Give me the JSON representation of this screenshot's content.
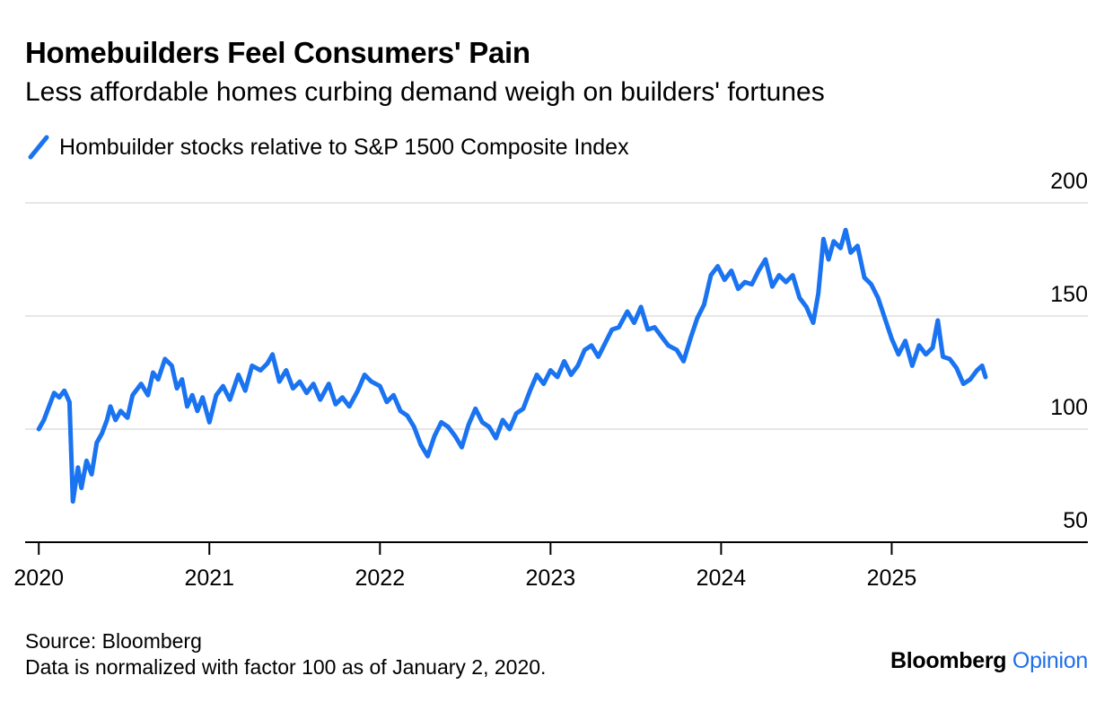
{
  "header": {
    "title": "Homebuilders Feel Consumers' Pain",
    "subtitle": "Less affordable homes curbing demand weigh on builders' fortunes"
  },
  "legend": {
    "label": "Hombuilder stocks relative to S&P 1500 Composite Index",
    "color": "#1a73f0"
  },
  "footer": {
    "source": "Source: Bloomberg",
    "note": "Data is normalized with factor 100 as of January 2, 2020.",
    "brand_main": "Bloomberg",
    "brand_sub": "Opinion"
  },
  "chart_data": {
    "type": "line",
    "line_color": "#1a73f0",
    "grid": true,
    "y_axis_side": "right",
    "ylim": [
      50,
      200
    ],
    "y_ticks": [
      50,
      100,
      150,
      200
    ],
    "x_range": [
      2019.92,
      2026.15
    ],
    "x_ticks": [
      {
        "value": 2020,
        "label": "2020"
      },
      {
        "value": 2021,
        "label": "2021"
      },
      {
        "value": 2022,
        "label": "2022"
      },
      {
        "value": 2023,
        "label": "2023"
      },
      {
        "value": 2024,
        "label": "2024"
      },
      {
        "value": 2025,
        "label": "2025"
      }
    ],
    "series": [
      {
        "name": "Hombuilder stocks relative to S&P 1500 Composite Index",
        "points": [
          [
            2020.0,
            100
          ],
          [
            2020.03,
            104
          ],
          [
            2020.06,
            110
          ],
          [
            2020.09,
            116
          ],
          [
            2020.12,
            114
          ],
          [
            2020.15,
            117
          ],
          [
            2020.18,
            112
          ],
          [
            2020.2,
            68
          ],
          [
            2020.23,
            83
          ],
          [
            2020.25,
            74
          ],
          [
            2020.28,
            86
          ],
          [
            2020.31,
            80
          ],
          [
            2020.34,
            94
          ],
          [
            2020.37,
            98
          ],
          [
            2020.4,
            104
          ],
          [
            2020.42,
            110
          ],
          [
            2020.45,
            104
          ],
          [
            2020.48,
            108
          ],
          [
            2020.52,
            105
          ],
          [
            2020.55,
            115
          ],
          [
            2020.6,
            120
          ],
          [
            2020.64,
            115
          ],
          [
            2020.67,
            125
          ],
          [
            2020.7,
            122
          ],
          [
            2020.74,
            131
          ],
          [
            2020.78,
            128
          ],
          [
            2020.81,
            118
          ],
          [
            2020.84,
            122
          ],
          [
            2020.87,
            110
          ],
          [
            2020.9,
            115
          ],
          [
            2020.93,
            108
          ],
          [
            2020.96,
            114
          ],
          [
            2021.0,
            103
          ],
          [
            2021.04,
            115
          ],
          [
            2021.08,
            119
          ],
          [
            2021.12,
            113
          ],
          [
            2021.17,
            124
          ],
          [
            2021.21,
            117
          ],
          [
            2021.25,
            128
          ],
          [
            2021.3,
            126
          ],
          [
            2021.34,
            129
          ],
          [
            2021.37,
            133
          ],
          [
            2021.41,
            121
          ],
          [
            2021.45,
            126
          ],
          [
            2021.49,
            118
          ],
          [
            2021.53,
            121
          ],
          [
            2021.57,
            116
          ],
          [
            2021.61,
            120
          ],
          [
            2021.65,
            113
          ],
          [
            2021.7,
            120
          ],
          [
            2021.74,
            111
          ],
          [
            2021.78,
            114
          ],
          [
            2021.82,
            110
          ],
          [
            2021.87,
            117
          ],
          [
            2021.91,
            124
          ],
          [
            2021.95,
            121
          ],
          [
            2022.0,
            119
          ],
          [
            2022.04,
            112
          ],
          [
            2022.08,
            115
          ],
          [
            2022.12,
            108
          ],
          [
            2022.16,
            106
          ],
          [
            2022.2,
            101
          ],
          [
            2022.24,
            93
          ],
          [
            2022.28,
            88
          ],
          [
            2022.32,
            97
          ],
          [
            2022.36,
            103
          ],
          [
            2022.4,
            101
          ],
          [
            2022.44,
            97
          ],
          [
            2022.48,
            92
          ],
          [
            2022.52,
            102
          ],
          [
            2022.56,
            109
          ],
          [
            2022.6,
            103
          ],
          [
            2022.64,
            101
          ],
          [
            2022.68,
            96
          ],
          [
            2022.72,
            104
          ],
          [
            2022.76,
            100
          ],
          [
            2022.8,
            107
          ],
          [
            2022.84,
            109
          ],
          [
            2022.88,
            117
          ],
          [
            2022.92,
            124
          ],
          [
            2022.96,
            120
          ],
          [
            2023.0,
            126
          ],
          [
            2023.04,
            123
          ],
          [
            2023.08,
            130
          ],
          [
            2023.12,
            124
          ],
          [
            2023.16,
            128
          ],
          [
            2023.2,
            135
          ],
          [
            2023.24,
            137
          ],
          [
            2023.28,
            132
          ],
          [
            2023.32,
            138
          ],
          [
            2023.36,
            144
          ],
          [
            2023.4,
            145
          ],
          [
            2023.45,
            152
          ],
          [
            2023.49,
            147
          ],
          [
            2023.53,
            154
          ],
          [
            2023.57,
            144
          ],
          [
            2023.61,
            145
          ],
          [
            2023.65,
            141
          ],
          [
            2023.69,
            137
          ],
          [
            2023.74,
            135
          ],
          [
            2023.78,
            130
          ],
          [
            2023.82,
            140
          ],
          [
            2023.86,
            149
          ],
          [
            2023.9,
            155
          ],
          [
            2023.94,
            168
          ],
          [
            2023.98,
            172
          ],
          [
            2024.02,
            166
          ],
          [
            2024.06,
            170
          ],
          [
            2024.1,
            162
          ],
          [
            2024.14,
            165
          ],
          [
            2024.18,
            164
          ],
          [
            2024.22,
            170
          ],
          [
            2024.26,
            175
          ],
          [
            2024.3,
            163
          ],
          [
            2024.34,
            168
          ],
          [
            2024.38,
            165
          ],
          [
            2024.42,
            168
          ],
          [
            2024.46,
            158
          ],
          [
            2024.5,
            154
          ],
          [
            2024.54,
            147
          ],
          [
            2024.57,
            160
          ],
          [
            2024.6,
            184
          ],
          [
            2024.63,
            175
          ],
          [
            2024.66,
            183
          ],
          [
            2024.7,
            180
          ],
          [
            2024.73,
            188
          ],
          [
            2024.76,
            178
          ],
          [
            2024.8,
            181
          ],
          [
            2024.84,
            167
          ],
          [
            2024.88,
            164
          ],
          [
            2024.92,
            158
          ],
          [
            2024.96,
            149
          ],
          [
            2025.0,
            140
          ],
          [
            2025.04,
            133
          ],
          [
            2025.08,
            139
          ],
          [
            2025.12,
            128
          ],
          [
            2025.16,
            137
          ],
          [
            2025.2,
            133
          ],
          [
            2025.24,
            136
          ],
          [
            2025.27,
            148
          ],
          [
            2025.3,
            132
          ],
          [
            2025.34,
            131
          ],
          [
            2025.38,
            127
          ],
          [
            2025.42,
            120
          ],
          [
            2025.46,
            122
          ],
          [
            2025.5,
            126
          ],
          [
            2025.53,
            128
          ],
          [
            2025.55,
            123
          ]
        ]
      }
    ]
  }
}
